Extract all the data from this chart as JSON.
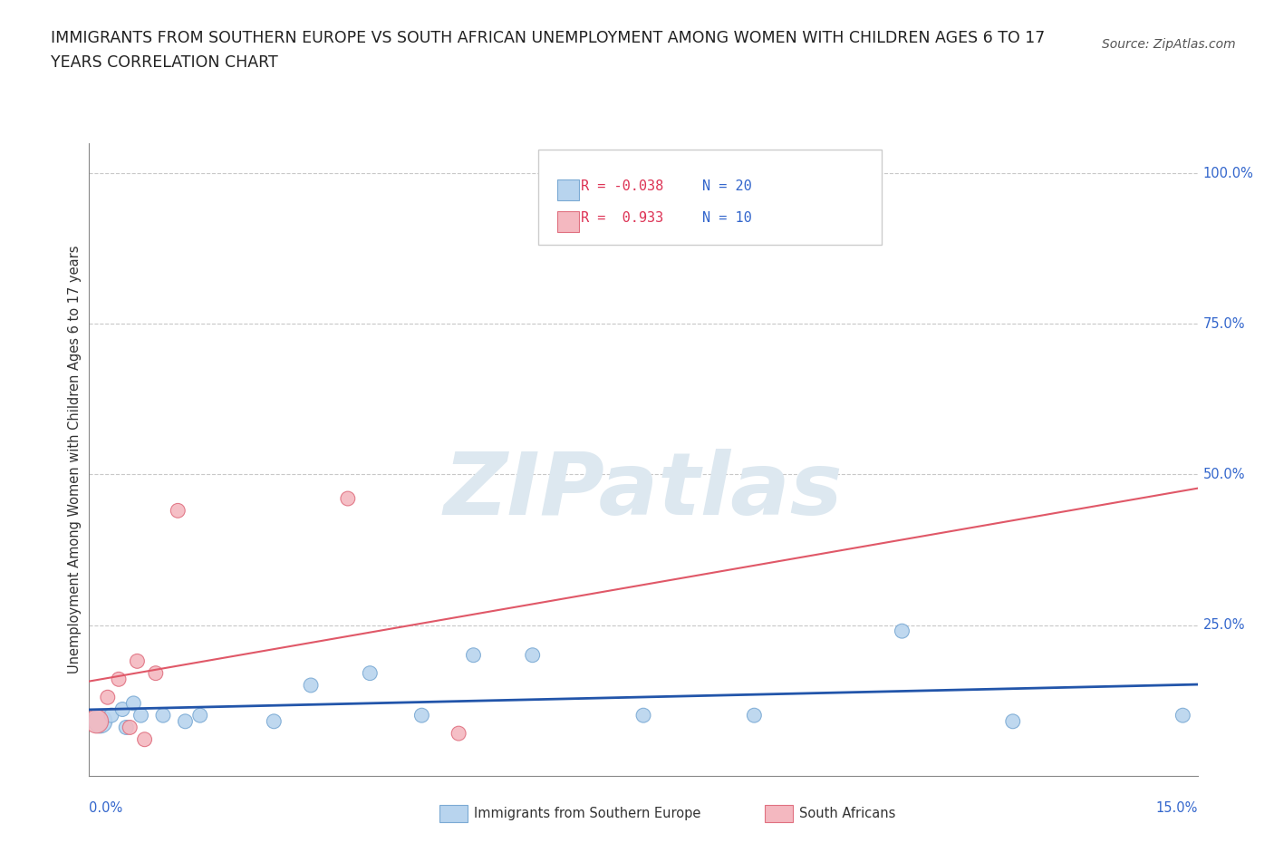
{
  "title_line1": "IMMIGRANTS FROM SOUTHERN EUROPE VS SOUTH AFRICAN UNEMPLOYMENT AMONG WOMEN WITH CHILDREN AGES 6 TO 17",
  "title_line2": "YEARS CORRELATION CHART",
  "source": "Source: ZipAtlas.com",
  "ylabel": "Unemployment Among Women with Children Ages 6 to 17 years",
  "xlim": [
    0.0,
    15.0
  ],
  "ylim": [
    0.0,
    105.0
  ],
  "yticks_right": [
    0,
    25,
    50,
    75,
    100
  ],
  "ytick_labels_right": [
    "",
    "25.0%",
    "50.0%",
    "75.0%",
    "100.0%"
  ],
  "xtick_positions": [
    0.0,
    3.75,
    7.5,
    11.25,
    15.0
  ],
  "xtick_labels": [
    "0.0%",
    "",
    "",
    "",
    "15.0%"
  ],
  "grid_color": "#c8c8c8",
  "background_color": "#ffffff",
  "blue_scatter": {
    "x": [
      0.15,
      0.3,
      0.45,
      0.5,
      0.6,
      0.7,
      1.0,
      1.3,
      1.5,
      2.5,
      3.0,
      3.8,
      4.5,
      5.2,
      6.0,
      7.5,
      9.0,
      11.0,
      12.5,
      14.8
    ],
    "y": [
      9,
      10,
      11,
      8,
      12,
      10,
      10,
      9,
      10,
      9,
      15,
      17,
      10,
      20,
      20,
      10,
      10,
      24,
      9,
      10
    ],
    "sizes": [
      350,
      130,
      130,
      130,
      130,
      130,
      130,
      130,
      130,
      130,
      130,
      130,
      130,
      130,
      130,
      130,
      130,
      130,
      130,
      130
    ],
    "color": "#b8d4ee",
    "edgecolor": "#7baad4",
    "R": -0.038,
    "N": 20
  },
  "pink_scatter": {
    "x": [
      0.1,
      0.25,
      0.4,
      0.55,
      0.65,
      0.75,
      0.9,
      1.2,
      3.5,
      5.0
    ],
    "y": [
      9,
      13,
      16,
      8,
      19,
      6,
      17,
      44,
      46,
      7
    ],
    "sizes": [
      350,
      130,
      130,
      130,
      130,
      130,
      130,
      130,
      130,
      130
    ],
    "color": "#f4b8c0",
    "edgecolor": "#e07080",
    "R": 0.933,
    "N": 10
  },
  "blue_trend_color": "#2255aa",
  "blue_trend_linewidth": 2.0,
  "pink_trend_color": "#e05868",
  "pink_trend_linewidth": 1.5,
  "legend": {
    "blue_label": "Immigrants from Southern Europe",
    "pink_label": "South Africans",
    "blue_color": "#b8d4ee",
    "blue_edge": "#7baad4",
    "pink_color": "#f4b8c0",
    "pink_edge": "#e07080",
    "R_blue": "-0.038",
    "R_pink": "0.933",
    "N_blue": "20",
    "N_pink": "10"
  },
  "watermark": "ZIPatlas",
  "watermark_color": "#dde8f0"
}
